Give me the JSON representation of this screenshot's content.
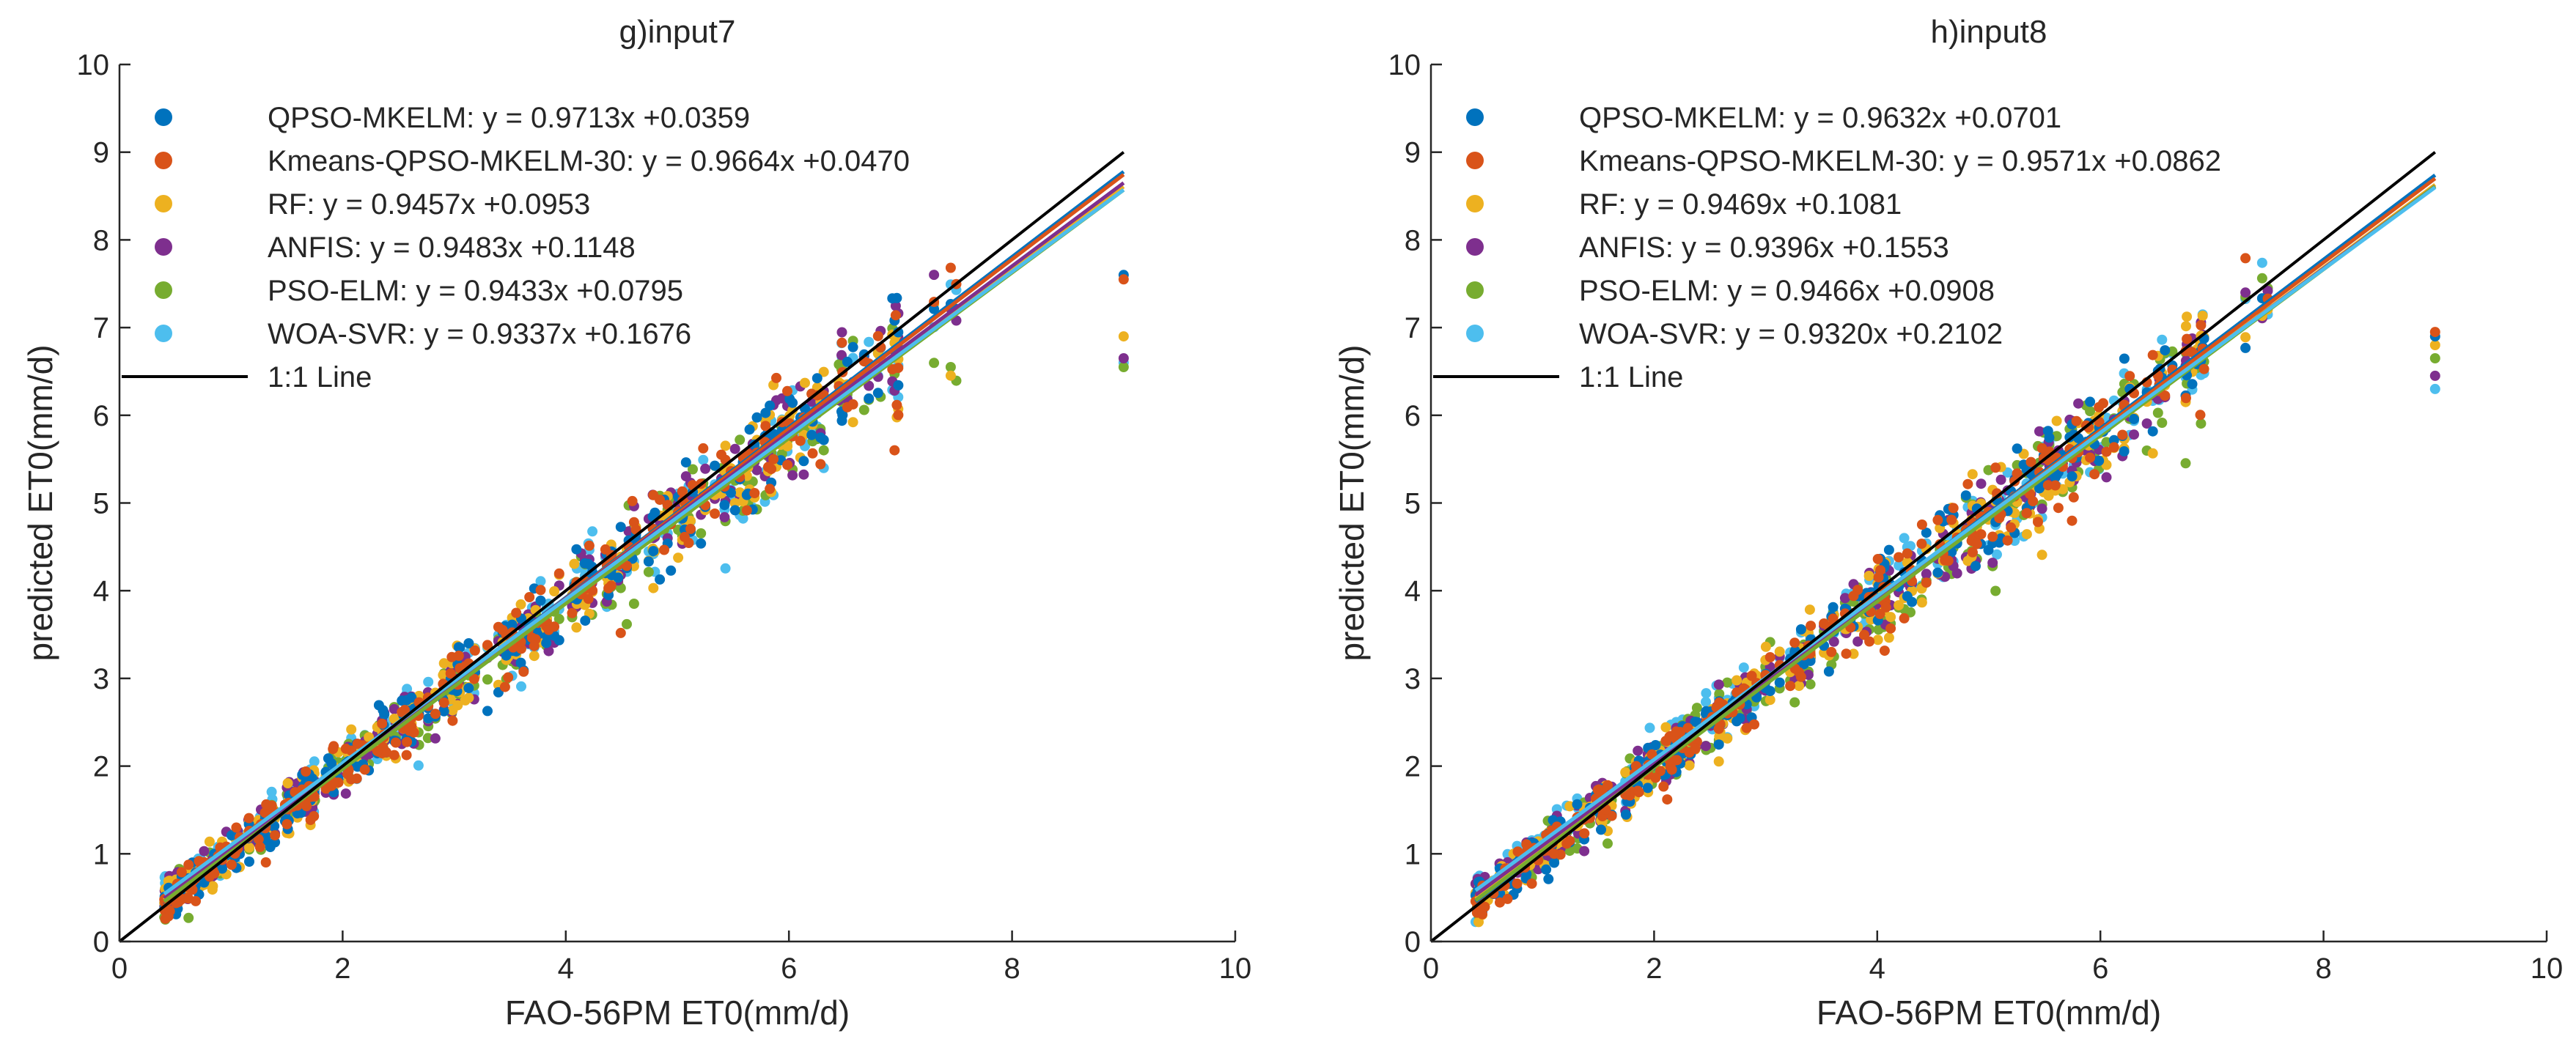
{
  "chart_data": [
    {
      "type": "scatter",
      "title": "g)input7",
      "xlabel": "FAO-56PM ET0(mm/d)",
      "ylabel": "predicted ET0(mm/d)",
      "xlim": [
        0,
        10
      ],
      "ylim": [
        0,
        10
      ],
      "xticks": [
        "0",
        "2",
        "4",
        "6",
        "8",
        "10"
      ],
      "yticks": [
        "0",
        "1",
        "2",
        "3",
        "4",
        "5",
        "6",
        "7",
        "8",
        "9",
        "10"
      ],
      "grid": false,
      "legend_position": "top-left",
      "series": [
        {
          "name": "QPSO-MKELM",
          "label": "QPSO-MKELM: y = 0.9713x +0.0359",
          "color": "#0072BD",
          "slope": 0.9713,
          "intercept": 0.0359
        },
        {
          "name": "Kmeans-QPSO-MKELM-30",
          "label": "Kmeans-QPSO-MKELM-30: y = 0.9664x +0.0470",
          "color": "#D95319",
          "slope": 0.9664,
          "intercept": 0.047
        },
        {
          "name": "RF",
          "label": "RF: y = 0.9457x +0.0953",
          "color": "#EDB120",
          "slope": 0.9457,
          "intercept": 0.0953
        },
        {
          "name": "ANFIS",
          "label": "ANFIS: y = 0.9483x +0.1148",
          "color": "#7E2F8E",
          "slope": 0.9483,
          "intercept": 0.1148
        },
        {
          "name": "PSO-ELM",
          "label": "PSO-ELM: y = 0.9433x +0.0795",
          "color": "#77AC30",
          "slope": 0.9433,
          "intercept": 0.0795
        },
        {
          "name": "WOA-SVR",
          "label": "WOA-SVR: y = 0.9337x +0.1676",
          "color": "#4DBEEE",
          "slope": 0.9337,
          "intercept": 0.1676
        }
      ],
      "reference_line": {
        "label": "1:1 Line",
        "color": "#000000",
        "x": [
          0,
          9
        ],
        "y": [
          0,
          9
        ]
      },
      "fit_line_x": [
        0.4,
        9
      ],
      "draw_order": [
        5,
        4,
        3,
        2,
        0,
        1
      ],
      "x_range_observed": [
        0.4,
        9.0
      ],
      "outlier_x": 9.0,
      "outlier_y": {
        "QPSO-MKELM": 7.6,
        "Kmeans-QPSO-MKELM-30": 7.55,
        "RF": 6.9,
        "ANFIS": 6.65,
        "PSO-ELM": 6.55,
        "WOA-SVR": 6.6
      },
      "points_per_series": 260,
      "seed": 7
    },
    {
      "type": "scatter",
      "title": "h)input8",
      "xlabel": "FAO-56PM ET0(mm/d)",
      "ylabel": "predicted ET0(mm/d)",
      "xlim": [
        0,
        10
      ],
      "ylim": [
        0,
        10
      ],
      "xticks": [
        "0",
        "2",
        "4",
        "6",
        "8",
        "10"
      ],
      "yticks": [
        "0",
        "1",
        "2",
        "3",
        "4",
        "5",
        "6",
        "7",
        "8",
        "9",
        "10"
      ],
      "grid": false,
      "legend_position": "top-left",
      "series": [
        {
          "name": "QPSO-MKELM",
          "label": "QPSO-MKELM: y = 0.9632x +0.0701",
          "color": "#0072BD",
          "slope": 0.9632,
          "intercept": 0.0701
        },
        {
          "name": "Kmeans-QPSO-MKELM-30",
          "label": "Kmeans-QPSO-MKELM-30: y = 0.9571x +0.0862",
          "color": "#D95319",
          "slope": 0.9571,
          "intercept": 0.0862
        },
        {
          "name": "RF",
          "label": "RF: y = 0.9469x +0.1081",
          "color": "#EDB120",
          "slope": 0.9469,
          "intercept": 0.1081
        },
        {
          "name": "ANFIS",
          "label": "ANFIS: y = 0.9396x +0.1553",
          "color": "#7E2F8E",
          "slope": 0.9396,
          "intercept": 0.1553
        },
        {
          "name": "PSO-ELM",
          "label": "PSO-ELM: y = 0.9466x +0.0908",
          "color": "#77AC30",
          "slope": 0.9466,
          "intercept": 0.0908
        },
        {
          "name": "WOA-SVR",
          "label": "WOA-SVR: y = 0.9320x +0.2102",
          "color": "#4DBEEE",
          "slope": 0.932,
          "intercept": 0.2102
        }
      ],
      "reference_line": {
        "label": "1:1 Line",
        "color": "#000000",
        "x": [
          0,
          9
        ],
        "y": [
          0,
          9
        ]
      },
      "fit_line_x": [
        0.4,
        9
      ],
      "draw_order": [
        5,
        4,
        3,
        2,
        0,
        1
      ],
      "x_range_observed": [
        0.4,
        9.0
      ],
      "outlier_x": 9.0,
      "outlier_y": {
        "QPSO-MKELM": 6.9,
        "Kmeans-QPSO-MKELM-30": 6.95,
        "RF": 6.8,
        "ANFIS": 6.45,
        "PSO-ELM": 6.65,
        "WOA-SVR": 6.3
      },
      "points_per_series": 260,
      "seed": 8
    }
  ]
}
